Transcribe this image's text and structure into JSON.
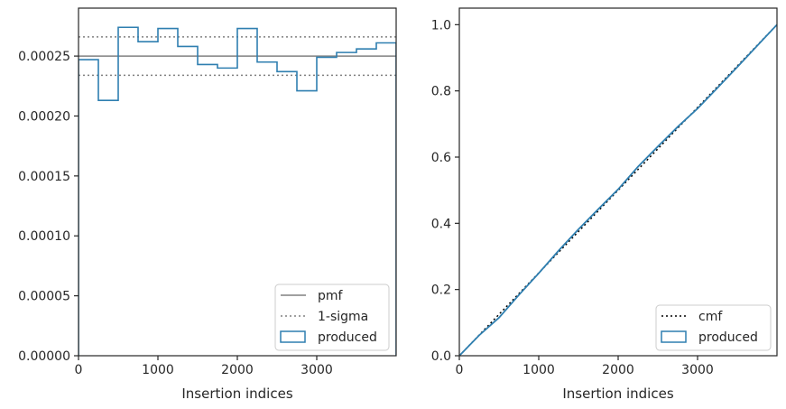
{
  "chart_data": [
    {
      "type": "line",
      "panel": "left",
      "xlabel": "Insertion indices",
      "ylabel": "",
      "xlim": [
        0,
        4000
      ],
      "ylim": [
        0,
        0.00029
      ],
      "xticks": [
        0,
        1000,
        2000,
        3000
      ],
      "xtick_labels": [
        "0",
        "1000",
        "2000",
        "3000"
      ],
      "yticks": [
        0,
        5e-05,
        0.0001,
        0.00015,
        0.0002,
        0.00025
      ],
      "ytick_labels": [
        "0.00000",
        "0.00005",
        "0.00010",
        "0.00015",
        "0.00020",
        "0.00025"
      ],
      "grid": false,
      "legend_position": "lower-right",
      "series": [
        {
          "name": "pmf",
          "kind": "hline",
          "y": 0.00025,
          "color": "#808080",
          "style": "solid"
        },
        {
          "name": "1-sigma",
          "kind": "hlines",
          "y": [
            0.000266,
            0.000234
          ],
          "color": "#808080",
          "style": "dotted"
        },
        {
          "name": "produced",
          "kind": "step-histogram",
          "color": "#2f7fb0",
          "edges": [
            0,
            250,
            500,
            750,
            1000,
            1250,
            1500,
            1750,
            2000,
            2250,
            2500,
            2750,
            3000,
            3250,
            3500,
            3750,
            4000
          ],
          "values": [
            0.000247,
            0.000213,
            0.000274,
            0.000262,
            0.000273,
            0.000258,
            0.000243,
            0.00024,
            0.000273,
            0.000245,
            0.000237,
            0.000221,
            0.000249,
            0.000253,
            0.000256,
            0.000261
          ]
        }
      ]
    },
    {
      "type": "line",
      "panel": "right",
      "xlabel": "Insertion indices",
      "ylabel": "",
      "xlim": [
        0,
        4000
      ],
      "ylim": [
        0,
        1.05
      ],
      "xticks": [
        0,
        1000,
        2000,
        3000
      ],
      "xtick_labels": [
        "0",
        "1000",
        "2000",
        "3000"
      ],
      "yticks": [
        0,
        0.2,
        0.4,
        0.6,
        0.8,
        1.0
      ],
      "ytick_labels": [
        "0.0",
        "0.2",
        "0.4",
        "0.6",
        "0.8",
        "1.0"
      ],
      "grid": false,
      "legend_position": "lower-right",
      "series": [
        {
          "name": "cmf",
          "kind": "line",
          "x": [
            0,
            4000
          ],
          "y": [
            0,
            1.0
          ],
          "color": "#000000",
          "style": "dotted"
        },
        {
          "name": "produced",
          "kind": "step-cdf",
          "color": "#2f7fb0",
          "x": [
            0,
            250,
            500,
            750,
            1000,
            1250,
            1500,
            1750,
            2000,
            2250,
            2500,
            2750,
            3000,
            3250,
            3500,
            3750,
            4000
          ],
          "y": [
            0,
            0.0618,
            0.115,
            0.1836,
            0.2491,
            0.3174,
            0.3819,
            0.4427,
            0.5027,
            0.5709,
            0.6322,
            0.6915,
            0.7467,
            0.809,
            0.8722,
            0.9362,
            1.0
          ]
        }
      ]
    }
  ]
}
